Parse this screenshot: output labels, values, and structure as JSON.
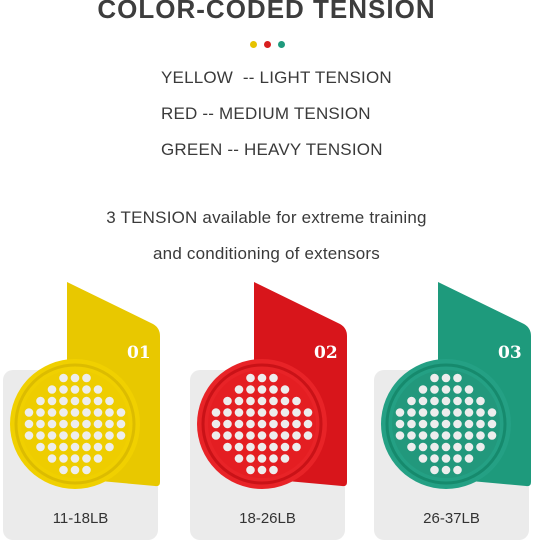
{
  "header": {
    "title": "COLOR-CODED TENSION"
  },
  "dots": [
    {
      "color": "#e6c200"
    },
    {
      "color": "#d81e1e"
    },
    {
      "color": "#1f9a7d"
    }
  ],
  "legend": {
    "yellow": "YELLOW  -- LIGHT TENSION",
    "red": "RED -- MEDIUM TENSION",
    "green": "GREEN -- HEAVY TENSION"
  },
  "description": {
    "line1": "3 TENSION available for extreme training",
    "line2": "and conditioning of extensors"
  },
  "cards": [
    {
      "number": "01",
      "range": "11-18LB",
      "color": "#e8c800",
      "ring": "#f2d400"
    },
    {
      "number": "02",
      "range": "18-26LB",
      "color": "#d8151b",
      "ring": "#e8262a"
    },
    {
      "number": "03",
      "range": "26-37LB",
      "color": "#1e9a7c",
      "ring": "#2aa688"
    }
  ]
}
